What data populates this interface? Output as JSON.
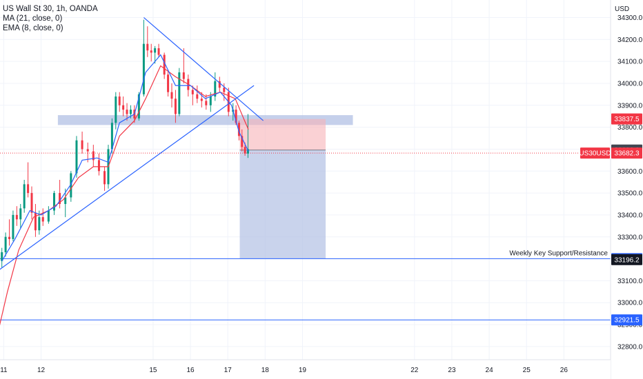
{
  "chart_data": {
    "type": "candlestick",
    "legend": [
      "US Wall St 30, 1h, OANDA",
      "MA (21, close, 0)",
      "EMA (8, close, 0)"
    ],
    "currency_label": "USD",
    "y_ticks": [
      32800,
      32900,
      33000,
      33100,
      33200,
      33300,
      33400,
      33500,
      33600,
      33700,
      33800,
      33900,
      34000,
      34100,
      34200,
      34300
    ],
    "x_ticks": [
      {
        "label": "11",
        "x": 11
      },
      {
        "label": "12",
        "x": 12
      },
      {
        "label": "15",
        "x": 15
      },
      {
        "label": "16",
        "x": 16
      },
      {
        "label": "17",
        "x": 17
      },
      {
        "label": "18",
        "x": 18
      },
      {
        "label": "19",
        "x": 19
      },
      {
        "label": "22",
        "x": 22
      },
      {
        "label": "23",
        "x": 23
      },
      {
        "label": "24",
        "x": 24
      },
      {
        "label": "25",
        "x": 25
      },
      {
        "label": "26",
        "x": 26
      }
    ],
    "ylim": [
      32740,
      34380
    ],
    "xlim": [
      10.9,
      27.25
    ],
    "colors": {
      "up": "#089981",
      "down": "#f23645",
      "ma": "#2962ff",
      "ema": "#f23645",
      "trendline": "#2962ff",
      "zone": "#b2c0e4",
      "stop": "#f7b3b8",
      "target": "#b2c0e4"
    },
    "candles": [
      {
        "x": 10.95,
        "o": 33190,
        "h": 33250,
        "l": 33160,
        "c": 33230
      },
      {
        "x": 11.05,
        "o": 33230,
        "h": 33320,
        "l": 33210,
        "c": 33300
      },
      {
        "x": 11.15,
        "o": 33300,
        "h": 33380,
        "l": 33260,
        "c": 33290
      },
      {
        "x": 11.25,
        "o": 33290,
        "h": 33420,
        "l": 33280,
        "c": 33400
      },
      {
        "x": 11.35,
        "o": 33400,
        "h": 33440,
        "l": 33350,
        "c": 33380
      },
      {
        "x": 11.45,
        "o": 33380,
        "h": 33450,
        "l": 33340,
        "c": 33430
      },
      {
        "x": 11.55,
        "o": 33430,
        "h": 33560,
        "l": 33410,
        "c": 33540
      },
      {
        "x": 11.65,
        "o": 33540,
        "h": 33640,
        "l": 33480,
        "c": 33500
      },
      {
        "x": 11.75,
        "o": 33500,
        "h": 33530,
        "l": 33380,
        "c": 33410
      },
      {
        "x": 11.85,
        "o": 33410,
        "h": 33450,
        "l": 33300,
        "c": 33330
      },
      {
        "x": 11.95,
        "o": 33330,
        "h": 33420,
        "l": 33310,
        "c": 33390
      },
      {
        "x": 12.05,
        "o": 33390,
        "h": 33430,
        "l": 33350,
        "c": 33370
      },
      {
        "x": 12.2,
        "o": 33370,
        "h": 33440,
        "l": 33360,
        "c": 33420
      },
      {
        "x": 12.35,
        "o": 33420,
        "h": 33510,
        "l": 33400,
        "c": 33500
      },
      {
        "x": 12.5,
        "o": 33500,
        "h": 33560,
        "l": 33430,
        "c": 33450
      },
      {
        "x": 12.65,
        "o": 33450,
        "h": 33520,
        "l": 33390,
        "c": 33480
      },
      {
        "x": 12.8,
        "o": 33480,
        "h": 33600,
        "l": 33460,
        "c": 33590
      },
      {
        "x": 12.95,
        "o": 33590,
        "h": 33760,
        "l": 33570,
        "c": 33740
      },
      {
        "x": 13.1,
        "o": 33740,
        "h": 33780,
        "l": 33680,
        "c": 33700
      },
      {
        "x": 13.25,
        "o": 33700,
        "h": 33730,
        "l": 33640,
        "c": 33690
      },
      {
        "x": 13.4,
        "o": 33690,
        "h": 33720,
        "l": 33620,
        "c": 33650
      },
      {
        "x": 13.55,
        "o": 33650,
        "h": 33680,
        "l": 33580,
        "c": 33600
      },
      {
        "x": 13.7,
        "o": 33600,
        "h": 33620,
        "l": 33510,
        "c": 33540
      },
      {
        "x": 13.8,
        "o": 33540,
        "h": 33720,
        "l": 33520,
        "c": 33700
      },
      {
        "x": 13.9,
        "o": 33700,
        "h": 33840,
        "l": 33680,
        "c": 33820
      },
      {
        "x": 14.0,
        "o": 33820,
        "h": 33960,
        "l": 33790,
        "c": 33940
      },
      {
        "x": 14.1,
        "o": 33940,
        "h": 33960,
        "l": 33870,
        "c": 33900
      },
      {
        "x": 14.2,
        "o": 33900,
        "h": 33940,
        "l": 33850,
        "c": 33880
      },
      {
        "x": 14.3,
        "o": 33880,
        "h": 33910,
        "l": 33830,
        "c": 33860
      },
      {
        "x": 14.4,
        "o": 33860,
        "h": 33900,
        "l": 33840,
        "c": 33880
      },
      {
        "x": 14.5,
        "o": 33880,
        "h": 33900,
        "l": 33820,
        "c": 33840
      },
      {
        "x": 14.62,
        "o": 33840,
        "h": 33960,
        "l": 33830,
        "c": 33950
      },
      {
        "x": 14.75,
        "o": 33950,
        "h": 34290,
        "l": 33940,
        "c": 34180
      },
      {
        "x": 14.85,
        "o": 34180,
        "h": 34260,
        "l": 34120,
        "c": 34150
      },
      {
        "x": 14.95,
        "o": 34150,
        "h": 34180,
        "l": 34100,
        "c": 34140
      },
      {
        "x": 15.05,
        "o": 34140,
        "h": 34170,
        "l": 34090,
        "c": 34160
      },
      {
        "x": 15.15,
        "o": 34160,
        "h": 34180,
        "l": 34120,
        "c": 34130
      },
      {
        "x": 15.3,
        "o": 34130,
        "h": 34140,
        "l": 34020,
        "c": 34040
      },
      {
        "x": 15.4,
        "o": 34040,
        "h": 34060,
        "l": 33940,
        "c": 33960
      },
      {
        "x": 15.5,
        "o": 33960,
        "h": 34000,
        "l": 33890,
        "c": 33930
      },
      {
        "x": 15.6,
        "o": 33930,
        "h": 33970,
        "l": 33820,
        "c": 33860
      },
      {
        "x": 15.7,
        "o": 33860,
        "h": 34070,
        "l": 33850,
        "c": 34050
      },
      {
        "x": 15.82,
        "o": 34050,
        "h": 34160,
        "l": 34000,
        "c": 34020
      },
      {
        "x": 15.94,
        "o": 34020,
        "h": 34040,
        "l": 33940,
        "c": 33970
      },
      {
        "x": 16.06,
        "o": 33970,
        "h": 33990,
        "l": 33900,
        "c": 33950
      },
      {
        "x": 16.18,
        "o": 33950,
        "h": 33990,
        "l": 33910,
        "c": 33930
      },
      {
        "x": 16.3,
        "o": 33930,
        "h": 33960,
        "l": 33890,
        "c": 33920
      },
      {
        "x": 16.42,
        "o": 33920,
        "h": 33950,
        "l": 33880,
        "c": 33900
      },
      {
        "x": 16.54,
        "o": 33900,
        "h": 33960,
        "l": 33870,
        "c": 33940
      },
      {
        "x": 16.66,
        "o": 33940,
        "h": 34050,
        "l": 33920,
        "c": 34010
      },
      {
        "x": 16.78,
        "o": 34010,
        "h": 34030,
        "l": 33960,
        "c": 33980
      },
      {
        "x": 16.9,
        "o": 33980,
        "h": 34000,
        "l": 33920,
        "c": 33960
      },
      {
        "x": 17.02,
        "o": 33960,
        "h": 33980,
        "l": 33850,
        "c": 33870
      },
      {
        "x": 17.14,
        "o": 33870,
        "h": 33910,
        "l": 33830,
        "c": 33880
      },
      {
        "x": 17.22,
        "o": 33880,
        "h": 33900,
        "l": 33810,
        "c": 33820
      },
      {
        "x": 17.3,
        "o": 33820,
        "h": 33830,
        "l": 33740,
        "c": 33760
      },
      {
        "x": 17.38,
        "o": 33760,
        "h": 33790,
        "l": 33690,
        "c": 33710
      },
      {
        "x": 17.46,
        "o": 33710,
        "h": 33730,
        "l": 33670,
        "c": 33680
      },
      {
        "x": 17.54,
        "o": 33680,
        "h": 33860,
        "l": 33660,
        "c": 33700
      }
    ],
    "ma_line": [
      {
        "x": 10.95,
        "y": 33190
      },
      {
        "x": 11.3,
        "y": 33290
      },
      {
        "x": 11.7,
        "y": 33420
      },
      {
        "x": 12.0,
        "y": 33400
      },
      {
        "x": 12.4,
        "y": 33440
      },
      {
        "x": 12.8,
        "y": 33540
      },
      {
        "x": 13.1,
        "y": 33650
      },
      {
        "x": 13.5,
        "y": 33660
      },
      {
        "x": 13.8,
        "y": 33640
      },
      {
        "x": 14.1,
        "y": 33820
      },
      {
        "x": 14.5,
        "y": 33860
      },
      {
        "x": 14.8,
        "y": 34050
      },
      {
        "x": 15.2,
        "y": 34130
      },
      {
        "x": 15.6,
        "y": 33990
      },
      {
        "x": 16.0,
        "y": 33990
      },
      {
        "x": 16.4,
        "y": 33930
      },
      {
        "x": 16.8,
        "y": 33960
      },
      {
        "x": 17.1,
        "y": 33900
      },
      {
        "x": 17.3,
        "y": 33780
      },
      {
        "x": 17.55,
        "y": 33690
      }
    ],
    "ema_line": [
      {
        "x": 10.88,
        "y": 32890
      },
      {
        "x": 11.1,
        "y": 33050
      },
      {
        "x": 11.4,
        "y": 33240
      },
      {
        "x": 11.8,
        "y": 33390
      },
      {
        "x": 12.2,
        "y": 33420
      },
      {
        "x": 12.6,
        "y": 33470
      },
      {
        "x": 13.0,
        "y": 33570
      },
      {
        "x": 13.4,
        "y": 33620
      },
      {
        "x": 13.8,
        "y": 33620
      },
      {
        "x": 14.1,
        "y": 33760
      },
      {
        "x": 14.5,
        "y": 33830
      },
      {
        "x": 14.8,
        "y": 33930
      },
      {
        "x": 15.2,
        "y": 34080
      },
      {
        "x": 15.6,
        "y": 34030
      },
      {
        "x": 16.0,
        "y": 33990
      },
      {
        "x": 16.4,
        "y": 33940
      },
      {
        "x": 16.8,
        "y": 33960
      },
      {
        "x": 17.2,
        "y": 33930
      },
      {
        "x": 17.45,
        "y": 33830
      },
      {
        "x": 17.55,
        "y": 33790
      }
    ],
    "trendlines": [
      {
        "x1": 10.88,
        "y1": 33150,
        "x2": 17.7,
        "y2": 33990
      },
      {
        "x1": 14.75,
        "y1": 34300,
        "x2": 17.95,
        "y2": 33830
      }
    ],
    "zones": [
      {
        "x1": 12.45,
        "x2": 20.35,
        "y1": 33810,
        "y2": 33855
      },
      {
        "x1": 17.32,
        "x2": 19.62,
        "y1": 33696,
        "y2": 33837.5,
        "kind": "stop"
      },
      {
        "x1": 17.32,
        "x2": 19.62,
        "y1": 33200.5,
        "y2": 33696,
        "kind": "target"
      }
    ],
    "hlines": [
      {
        "y": 33200.5,
        "label": "Weekly Key Support/Resistance"
      },
      {
        "y": 32921.5,
        "label": ""
      }
    ],
    "current_price": 33682.3,
    "symbol": "US30USD",
    "price_tags": [
      {
        "value": "33837.5",
        "y": 33837.5,
        "color": "#f23645"
      },
      {
        "value": "33696.0",
        "y": 33696.0,
        "color": "#434651"
      },
      {
        "value": "33682.3",
        "y": 33682.3,
        "color": "#f23645"
      },
      {
        "value": "33200.5",
        "y": 33200.5,
        "color": "#2962ff"
      },
      {
        "value": "33196.2",
        "y": 33196.2,
        "color": "#131722"
      },
      {
        "value": "32921.5",
        "y": 32921.5,
        "color": "#2962ff"
      }
    ]
  }
}
